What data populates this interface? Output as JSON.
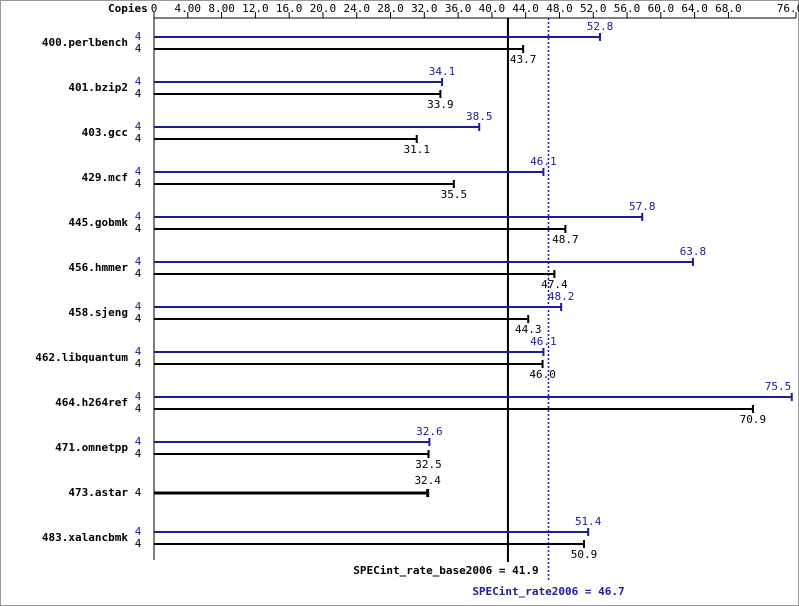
{
  "chart_data": {
    "type": "bar",
    "orientation": "horizontal",
    "axis_label": "Copies",
    "categories": [
      "400.perlbench",
      "401.bzip2",
      "403.gcc",
      "429.mcf",
      "445.gobmk",
      "456.hmmer",
      "458.sjeng",
      "462.libquantum",
      "464.h264ref",
      "471.omnetpp",
      "473.astar",
      "483.xalancbmk"
    ],
    "xlim": [
      0,
      76
    ],
    "xticks": [
      0,
      {
        "value": 4,
        "label": "4.00"
      },
      {
        "value": 8,
        "label": "8.00"
      },
      {
        "value": 12,
        "label": "12.0"
      },
      {
        "value": 16,
        "label": "16.0"
      },
      {
        "value": 20,
        "label": "20.0"
      },
      {
        "value": 24,
        "label": "24.0"
      },
      {
        "value": 28,
        "label": "28.0"
      },
      {
        "value": 32,
        "label": "32.0"
      },
      {
        "value": 36,
        "label": "36.0"
      },
      {
        "value": 40,
        "label": "40.0"
      },
      {
        "value": 44,
        "label": "44.0"
      },
      {
        "value": 48,
        "label": "48.0"
      },
      {
        "value": 52,
        "label": "52.0"
      },
      {
        "value": 56,
        "label": "56.0"
      },
      {
        "value": 60,
        "label": "60.0"
      },
      {
        "value": 64,
        "label": "64.0"
      },
      {
        "value": 68,
        "label": "68.0"
      },
      {
        "value": 76,
        "label": "76.0"
      }
    ],
    "series": [
      {
        "color": "#1c1c96",
        "copies": [
          "4",
          "4",
          "4",
          "4",
          "4",
          "4",
          "4",
          "4",
          "4",
          "4",
          null,
          "4"
        ],
        "values": [
          52.8,
          34.1,
          38.5,
          46.1,
          57.8,
          63.8,
          48.2,
          46.1,
          75.5,
          32.6,
          null,
          51.4
        ],
        "value_labels": [
          "52.8",
          "34.1",
          "38.5",
          "46.1",
          "57.8",
          "63.8",
          "48.2",
          "46.1",
          "75.5",
          "32.6",
          null,
          "51.4"
        ]
      },
      {
        "color": "#000000",
        "copies": [
          "4",
          "4",
          "4",
          "4",
          "4",
          "4",
          "4",
          "4",
          "4",
          "4",
          "4",
          "4"
        ],
        "values": [
          43.7,
          33.9,
          31.1,
          35.5,
          48.7,
          47.4,
          44.3,
          46.0,
          70.9,
          32.5,
          32.4,
          50.9
        ],
        "value_labels": [
          "43.7",
          "33.9",
          "31.1",
          "35.5",
          "48.7",
          "47.4",
          "44.3",
          "46.0",
          "70.9",
          "32.5",
          "32.4",
          "50.9"
        ]
      }
    ],
    "reference_lines": [
      {
        "label": "SPECint_rate_base2006 = 41.9",
        "value": 41.9,
        "color": "#000000",
        "dashed": false
      },
      {
        "label": "SPECint_rate2006 = 46.7",
        "value": 46.7,
        "color": "#1c1c96",
        "dashed": true
      }
    ]
  }
}
